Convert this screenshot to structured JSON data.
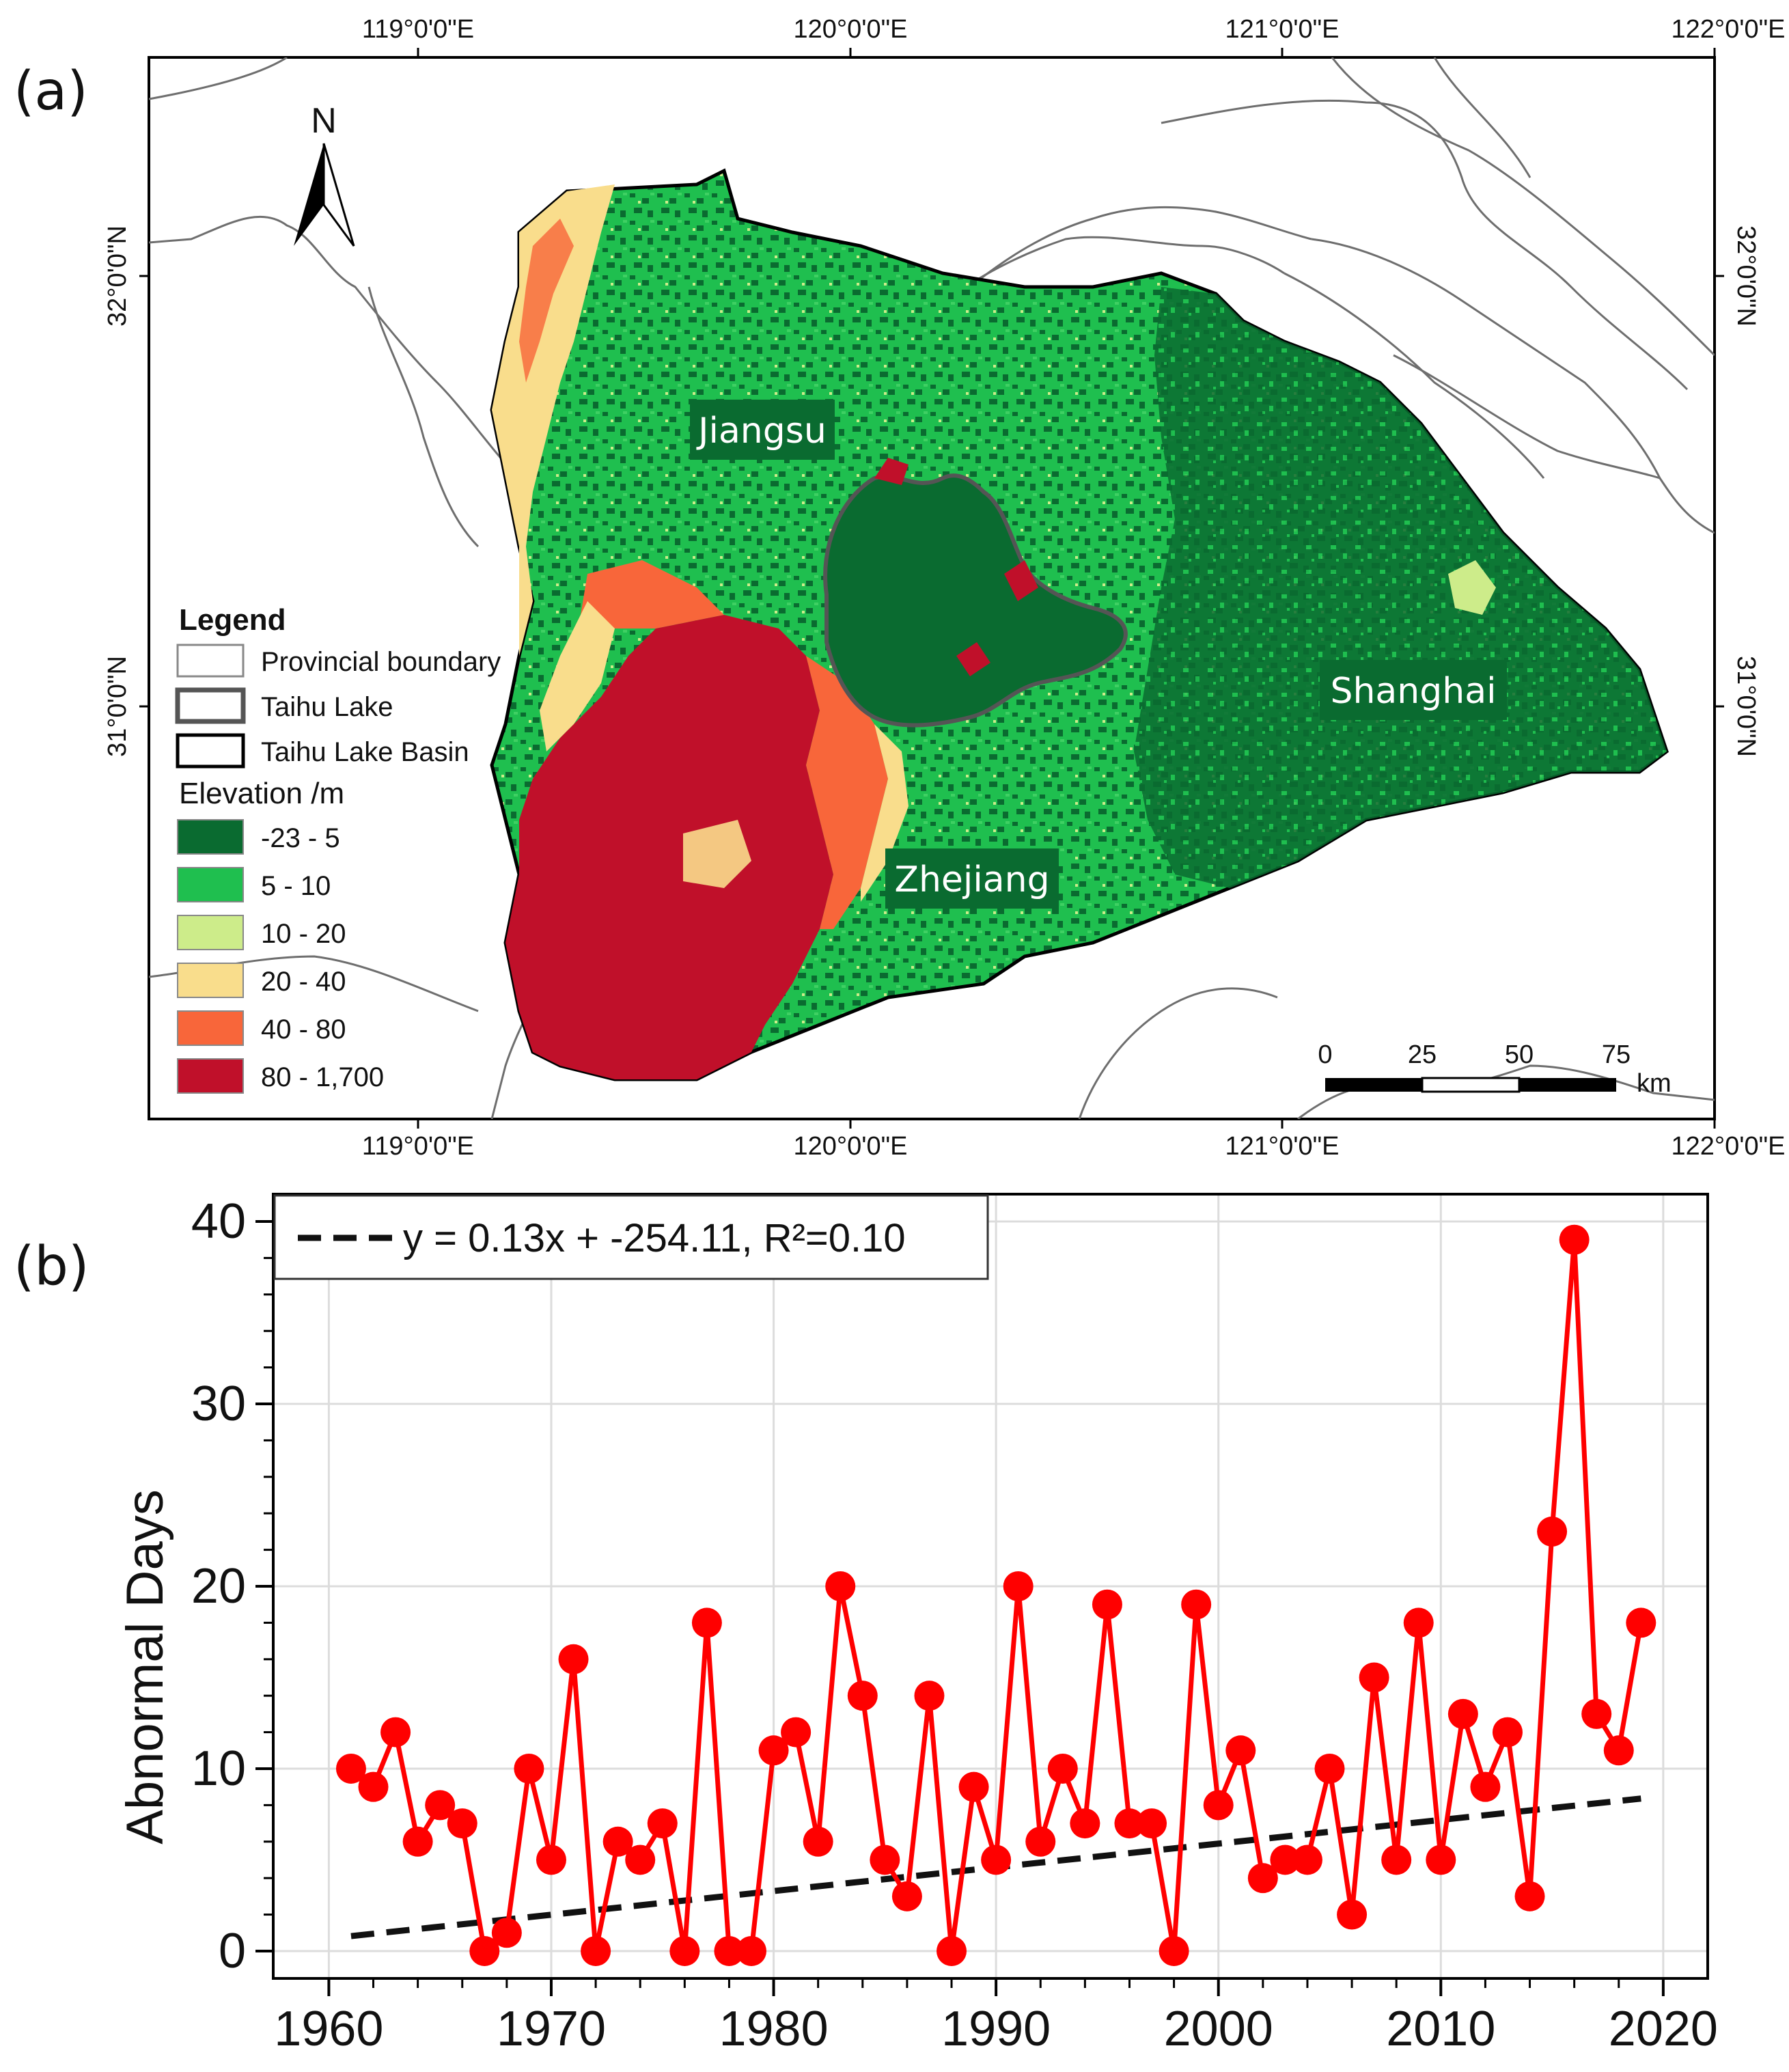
{
  "panel_a": {
    "panel_label": "(a)",
    "lon_ticks": [
      "119°0'0\"E",
      "120°0'0\"E",
      "121°0'0\"E",
      "122°0'0\"E"
    ],
    "lat_ticks": [
      "32°0'0\"N",
      "31°0'0\"N"
    ],
    "north_label": "N",
    "regions": {
      "jiangsu": "Jiangsu",
      "shanghai": "Shanghai",
      "zhejiang": "Zhejiang"
    },
    "legend": {
      "title": "Legend",
      "provincial_boundary": "Provincial boundary",
      "taihu_lake": "Taihu Lake",
      "taihu_basin": "Taihu Lake Basin",
      "elevation_title": "Elevation /m",
      "classes": [
        {
          "label": "-23 - 5",
          "color": "#0a6b30"
        },
        {
          "label": "5 - 10",
          "color": "#1fbf4f"
        },
        {
          "label": "10 - 20",
          "color": "#cdec8a"
        },
        {
          "label": "20 - 40",
          "color": "#f9dd8c"
        },
        {
          "label": "40 - 80",
          "color": "#f8663a"
        },
        {
          "label": "80 - 1,700",
          "color": "#c0102a"
        }
      ]
    },
    "scale_bar": {
      "ticks": [
        "0",
        "25",
        "50",
        "75"
      ],
      "unit": "km"
    }
  },
  "chart_data": {
    "type": "line",
    "panel_label": "(b)",
    "ylabel": "Abnormal Days",
    "xlabel": "",
    "xlim": [
      1957.5,
      2022
    ],
    "ylim": [
      -1.5,
      41.5
    ],
    "xticks": [
      1960,
      1970,
      1980,
      1990,
      2000,
      2010,
      2020
    ],
    "yticks": [
      0,
      10,
      20,
      30,
      40
    ],
    "grid": true,
    "legend_position": "top-left",
    "series": [
      {
        "name": "Abnormal Days",
        "color": "#ff0000",
        "x": [
          1961,
          1962,
          1963,
          1964,
          1965,
          1966,
          1967,
          1968,
          1969,
          1970,
          1971,
          1972,
          1973,
          1974,
          1975,
          1976,
          1977,
          1978,
          1979,
          1980,
          1981,
          1982,
          1983,
          1984,
          1985,
          1986,
          1987,
          1988,
          1989,
          1990,
          1991,
          1992,
          1993,
          1994,
          1995,
          1996,
          1997,
          1998,
          1999,
          2000,
          2001,
          2002,
          2003,
          2004,
          2005,
          2006,
          2007,
          2008,
          2009,
          2010,
          2011,
          2012,
          2013,
          2014,
          2015,
          2016,
          2017,
          2018,
          2019
        ],
        "values": [
          10,
          9,
          12,
          6,
          8,
          7,
          0,
          1,
          10,
          5,
          16,
          0,
          6,
          5,
          7,
          0,
          18,
          0,
          0,
          11,
          12,
          6,
          20,
          14,
          5,
          3,
          14,
          0,
          9,
          5,
          20,
          6,
          10,
          7,
          19,
          7,
          7,
          0,
          19,
          8,
          11,
          4,
          5,
          5,
          10,
          2,
          15,
          5,
          18,
          5,
          13,
          9,
          12,
          3,
          23,
          39,
          13,
          11,
          18
        ]
      }
    ],
    "trend": {
      "name": "y =  0.13x + -254.11, R²=0.10",
      "slope": 0.13,
      "intercept": -254.11,
      "x_range": [
        1961,
        2019
      ],
      "color": "#111111"
    }
  }
}
